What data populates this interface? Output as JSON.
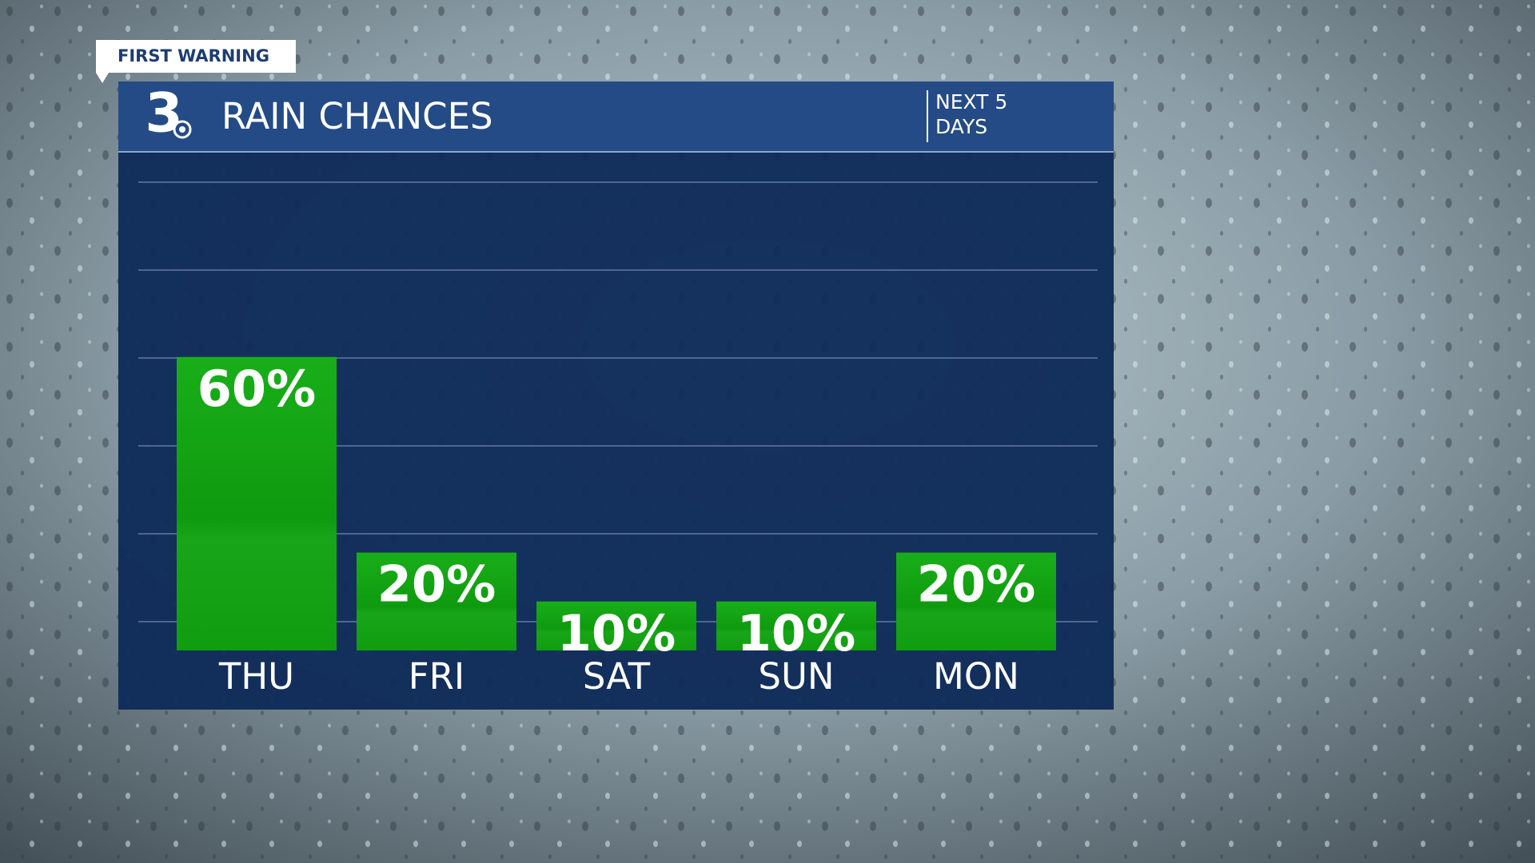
{
  "badge": "FIRST WARNING",
  "logo_text": "3",
  "chart_data": {
    "type": "bar",
    "title": "RAIN CHANCES",
    "subtitle": "NEXT 5 DAYS",
    "categories": [
      "THU",
      "FRI",
      "SAT",
      "SUN",
      "MON"
    ],
    "values": [
      60,
      20,
      10,
      10,
      20
    ],
    "value_labels": [
      "60%",
      "20%",
      "10%",
      "10%",
      "20%"
    ],
    "color": "#14a514",
    "ylim": [
      0,
      100
    ]
  }
}
